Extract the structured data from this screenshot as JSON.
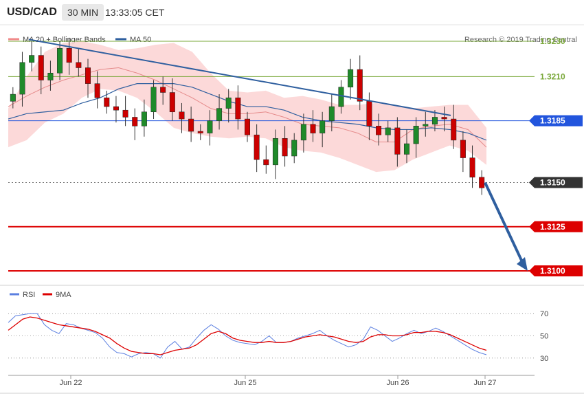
{
  "header": {
    "pair": "USD/CAD",
    "timeframe": "30 MIN",
    "time": "13:33:05 CET"
  },
  "legend": {
    "items": [
      {
        "label": "MA 20 + Bollinger Bands",
        "color": "#f08a8a"
      },
      {
        "label": "MA 50",
        "color": "#2f5f9f"
      }
    ],
    "credit": "Research © 2019 Trading Central"
  },
  "rsi_legend": {
    "items": [
      {
        "label": "RSI",
        "color": "#5b7fe0"
      },
      {
        "label": "9MA",
        "color": "#dd0000"
      }
    ]
  },
  "colors": {
    "up": "#1f8a2a",
    "down": "#cc0000",
    "band": "#fcd2d2",
    "green_level": "#7aa83a",
    "blue_level": "#2255dd",
    "red_level": "#dd0000",
    "trend": "#2f5f9f",
    "current": "#333333"
  },
  "chart_data": [
    {
      "type": "candlestick",
      "ylim": [
        1.3093,
        1.3237
      ],
      "x_ticks": [
        "Jun 22",
        "Jun 25",
        "Jun 26",
        "Jun 27"
      ],
      "levels": [
        {
          "value": 1.323,
          "label": "1.3230",
          "kind": "resistance"
        },
        {
          "value": 1.321,
          "label": "1.3210",
          "kind": "resistance"
        },
        {
          "value": 1.3185,
          "label": "1.3185",
          "kind": "pivot"
        },
        {
          "value": 1.315,
          "label": "1.3150",
          "kind": "current"
        },
        {
          "value": 1.3125,
          "label": "1.3125",
          "kind": "support"
        },
        {
          "value": 1.31,
          "label": "1.3100",
          "kind": "support"
        }
      ],
      "series": [
        {
          "name": "MA 20 + Bollinger Bands",
          "upper": [
            1.3192,
            1.321,
            1.3224,
            1.3229,
            1.323,
            1.3228,
            1.3225,
            1.3226,
            1.3228,
            1.3229,
            1.3224,
            1.3212,
            1.3202,
            1.3201,
            1.3202,
            1.3198,
            1.3199,
            1.3197,
            1.3194,
            1.3194,
            1.3195,
            1.3194,
            1.3192,
            1.3193,
            1.3194,
            1.3194,
            1.3181
          ],
          "mid": [
            1.3193,
            1.3199,
            1.3204,
            1.3208,
            1.3211,
            1.3214,
            1.3215,
            1.3212,
            1.3208,
            1.3203,
            1.3198,
            1.3192,
            1.3189,
            1.3189,
            1.319,
            1.3187,
            1.3183,
            1.3182,
            1.3181,
            1.3178,
            1.3173,
            1.3173,
            1.318,
            1.3182,
            1.3183,
            1.318,
            1.317
          ],
          "lower": [
            1.317,
            1.3174,
            1.3184,
            1.3189,
            1.3198,
            1.3203,
            1.3202,
            1.3198,
            1.319,
            1.3181,
            1.3178,
            1.3176,
            1.3175,
            1.3176,
            1.3175,
            1.317,
            1.3168,
            1.3167,
            1.3164,
            1.316,
            1.3156,
            1.3157,
            1.3163,
            1.3167,
            1.3171,
            1.3168,
            1.316
          ]
        },
        {
          "name": "MA 50",
          "values": [
            1.3186,
            1.3189,
            1.319,
            1.3191,
            1.3195,
            1.3198,
            1.3203,
            1.3206,
            1.3206,
            1.3206,
            1.3204,
            1.32,
            1.3196,
            1.3193,
            1.3193,
            1.3191,
            1.3187,
            1.3185,
            1.3184,
            1.3183,
            1.3181,
            1.318,
            1.318,
            1.3181,
            1.318,
            1.3178,
            1.3174
          ]
        },
        {
          "name": "Candles (close)",
          "values": [
            1.32,
            1.3218,
            1.3222,
            1.3208,
            1.3212,
            1.3226,
            1.3218,
            1.3215,
            1.3206,
            1.3198,
            1.3193,
            1.3191,
            1.3187,
            1.3182,
            1.319,
            1.3204,
            1.3201,
            1.319,
            1.3186,
            1.3179,
            1.3178,
            1.3185,
            1.3192,
            1.3198,
            1.3186,
            1.3177,
            1.3163,
            1.316,
            1.3175,
            1.3165,
            1.3174,
            1.3183,
            1.3178,
            1.3185,
            1.3193,
            1.3204,
            1.3214,
            1.3196,
            1.3182,
            1.3177,
            1.3181,
            1.3166,
            1.3172,
            1.3182,
            1.3183,
            1.3187,
            1.3186,
            1.3174,
            1.3164,
            1.3153,
            1.3147
          ]
        }
      ],
      "trendline": {
        "from": 1.3231,
        "to": 1.3188
      },
      "projection": {
        "from": 1.315,
        "to": 1.31
      }
    },
    {
      "type": "line",
      "ylim": [
        20,
        80
      ],
      "y_ticks": [
        70,
        50,
        30
      ],
      "series": [
        {
          "name": "RSI",
          "values": [
            62,
            68,
            69,
            70,
            70,
            60,
            55,
            52,
            61,
            60,
            57,
            55,
            53,
            48,
            40,
            35,
            34,
            31,
            34,
            35,
            34,
            30,
            40,
            45,
            38,
            40,
            48,
            55,
            60,
            56,
            50,
            46,
            44,
            43,
            42,
            45,
            50,
            44,
            44,
            45,
            48,
            50,
            52,
            55,
            50,
            46,
            43,
            40,
            42,
            47,
            58,
            55,
            50,
            45,
            48,
            52,
            55,
            52,
            54,
            57,
            54,
            50,
            46,
            42,
            38,
            35,
            33
          ]
        },
        {
          "name": "9MA",
          "values": [
            55,
            60,
            65,
            67,
            66,
            64,
            62,
            60,
            59,
            58,
            57,
            56,
            54,
            51,
            48,
            43,
            39,
            36,
            35,
            34,
            34,
            33,
            35,
            37,
            38,
            39,
            42,
            47,
            52,
            54,
            52,
            48,
            46,
            45,
            44,
            44,
            45,
            44,
            44,
            45,
            47,
            49,
            50,
            51,
            50,
            49,
            47,
            45,
            44,
            45,
            49,
            51,
            51,
            50,
            50,
            51,
            53,
            53,
            54,
            54,
            53,
            51,
            48,
            45,
            42,
            39,
            37
          ]
        }
      ]
    }
  ]
}
